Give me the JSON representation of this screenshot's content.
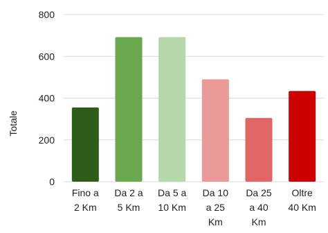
{
  "chart_data": {
    "type": "bar",
    "ylabel": "Totale",
    "xlabel": "",
    "ylim": [
      0,
      800
    ],
    "yticks": [
      "0",
      "200",
      "400",
      "600",
      "800"
    ],
    "grid": true,
    "categories": [
      [
        "Fino a",
        "2 Km"
      ],
      [
        "Da 2 a",
        "5 Km"
      ],
      [
        "Da 5 a",
        "10 Km"
      ],
      [
        "Da 10",
        "a 25",
        "Km"
      ],
      [
        "Da 25",
        "a 40",
        "Km"
      ],
      [
        "Oltre",
        "40 Km"
      ]
    ],
    "values": [
      355,
      692,
      692,
      490,
      305,
      434
    ],
    "colors": [
      "#2e5d1a",
      "#6aa84f",
      "#b6d7a8",
      "#ea9999",
      "#e06666",
      "#cc0000"
    ]
  }
}
